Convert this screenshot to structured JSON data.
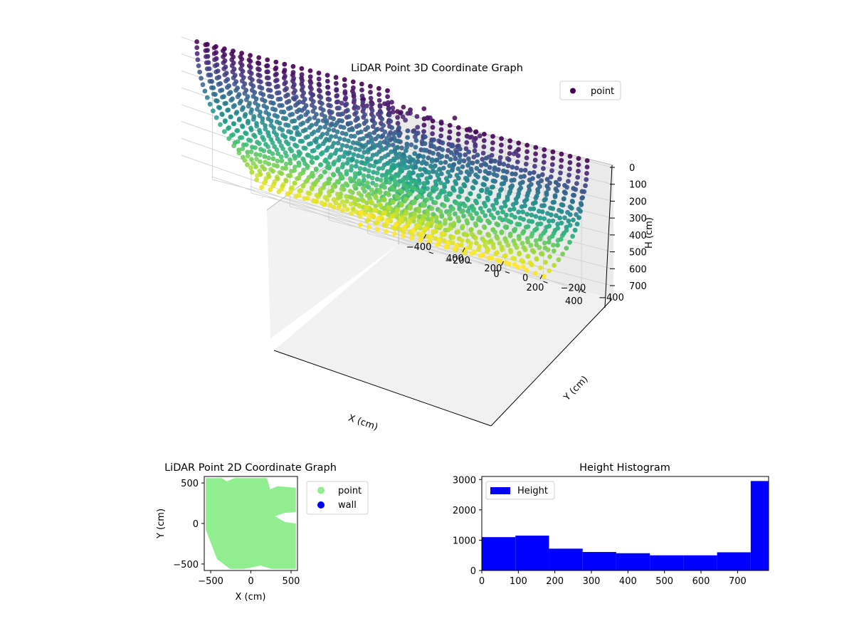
{
  "chart_data": [
    {
      "type": "scatter3d",
      "title": "LiDAR Point 3D Coordinate Graph",
      "xlabel": "X (cm)",
      "ylabel": "Y (cm)",
      "zlabel": "H (cm)",
      "xticks": [
        "−400",
        "−200",
        "0",
        "200",
        "400"
      ],
      "yticks": [
        "−400",
        "−200",
        "0",
        "200",
        "400"
      ],
      "zticks": [
        "0",
        "100",
        "200",
        "300",
        "400",
        "500",
        "600",
        "700"
      ],
      "xlim": [
        -560,
        560
      ],
      "ylim": [
        -560,
        560
      ],
      "zlim": [
        0,
        780
      ],
      "zaxis_inverted": true,
      "colormap": "viridis",
      "grid": true,
      "legend": {
        "entries": [
          "point"
        ],
        "placement": "top-right"
      },
      "series": [
        {
          "name": "point",
          "color": "#440154",
          "shape": "room scan: wall points curving from floor up to ceiling height, dense near walls, scattered interior points"
        }
      ]
    },
    {
      "type": "scatter",
      "title": "LiDAR Point 2D Coordinate Graph",
      "xlabel": "X (cm)",
      "ylabel": "Y (cm)",
      "xticks": [
        "−500",
        "0",
        "500"
      ],
      "yticks": [
        "−500",
        "0",
        "500"
      ],
      "xlim": [
        -580,
        580
      ],
      "ylim": [
        -580,
        580
      ],
      "legend": {
        "entries": [
          "point",
          "wall"
        ],
        "placement": "outside-right"
      },
      "series": [
        {
          "name": "point",
          "color": "#90ee90"
        },
        {
          "name": "wall",
          "color": "#0000ff"
        }
      ]
    },
    {
      "type": "histogram",
      "title": "Height Histogram",
      "xticks": [
        "0",
        "100",
        "200",
        "300",
        "400",
        "500",
        "600",
        "700"
      ],
      "yticks": [
        "0",
        "1000",
        "2000",
        "3000"
      ],
      "xlim": [
        0,
        785
      ],
      "ylim": [
        0,
        3100
      ],
      "bin_edges": [
        0,
        92,
        184,
        276,
        368,
        460,
        552,
        644,
        736,
        785
      ],
      "values": [
        1100,
        1150,
        720,
        610,
        570,
        500,
        500,
        600,
        2950
      ],
      "color": "#0000ff",
      "legend": {
        "entries": [
          "Height"
        ],
        "placement": "top-left"
      }
    }
  ]
}
